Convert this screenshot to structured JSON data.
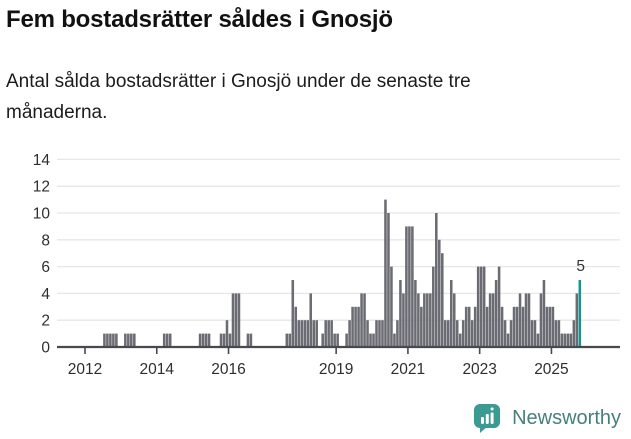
{
  "header": {
    "title": "Fem bostadsrätter såldes i Gnosjö",
    "subtitle": "Antal sålda bostadsrätter i Gnosjö under de senaste tre månaderna.",
    "subtitle_lines": {
      "line1": "Antal sålda bostadsrätter i Gnosjö under de senaste tre",
      "line2": "månaderna."
    }
  },
  "chart_data": {
    "type": "bar",
    "title": "Fem bostadsrätter såldes i Gnosjö",
    "ylabel": "",
    "xlabel": "",
    "frequency": "monthly",
    "x_start": "2012-01",
    "x_end": "2025-10",
    "ylim": [
      0,
      14
    ],
    "grid": true,
    "y_ticks": [
      0,
      2,
      4,
      6,
      8,
      10,
      12,
      14
    ],
    "x_tick_years": [
      2012,
      2014,
      2016,
      2019,
      2021,
      2023,
      2025
    ],
    "values": [
      0,
      0,
      0,
      0,
      0,
      0,
      1,
      1,
      1,
      1,
      1,
      0,
      0,
      1,
      1,
      1,
      1,
      0,
      0,
      0,
      0,
      0,
      0,
      0,
      0,
      0,
      1,
      1,
      1,
      0,
      0,
      0,
      0,
      0,
      0,
      0,
      0,
      0,
      1,
      1,
      1,
      1,
      0,
      0,
      0,
      1,
      1,
      2,
      1,
      4,
      4,
      4,
      0,
      0,
      1,
      1,
      0,
      0,
      0,
      0,
      0,
      0,
      0,
      0,
      0,
      0,
      0,
      1,
      1,
      5,
      3,
      2,
      2,
      2,
      2,
      4,
      2,
      2,
      0,
      1,
      2,
      2,
      2,
      1,
      1,
      0,
      0,
      1,
      2,
      3,
      3,
      3,
      4,
      4,
      2,
      1,
      1,
      2,
      2,
      2,
      11,
      10,
      6,
      1,
      2,
      5,
      4,
      9,
      9,
      9,
      5,
      4,
      3,
      4,
      4,
      4,
      6,
      10,
      8,
      7,
      2,
      2,
      5,
      4,
      2,
      1,
      2,
      3,
      3,
      2,
      3,
      6,
      6,
      6,
      3,
      4,
      4,
      5,
      6,
      3,
      2,
      1,
      2,
      3,
      3,
      4,
      3,
      4,
      4,
      2,
      2,
      1,
      4,
      5,
      3,
      3,
      3,
      2,
      2,
      1,
      1,
      1,
      1,
      2,
      4,
      5
    ],
    "highlight_last": true,
    "last_value_label": "5",
    "bar_color": "#6b6b73",
    "highlight_color": "#12968f",
    "axis_color": "#48484e",
    "gridline_color": "#e7e7e7",
    "tick_label_color": "#2e2e2e"
  },
  "footer": {
    "brand": "Newsworthy",
    "brand_color": "#45807d",
    "icon_color": "#3b9a92"
  }
}
